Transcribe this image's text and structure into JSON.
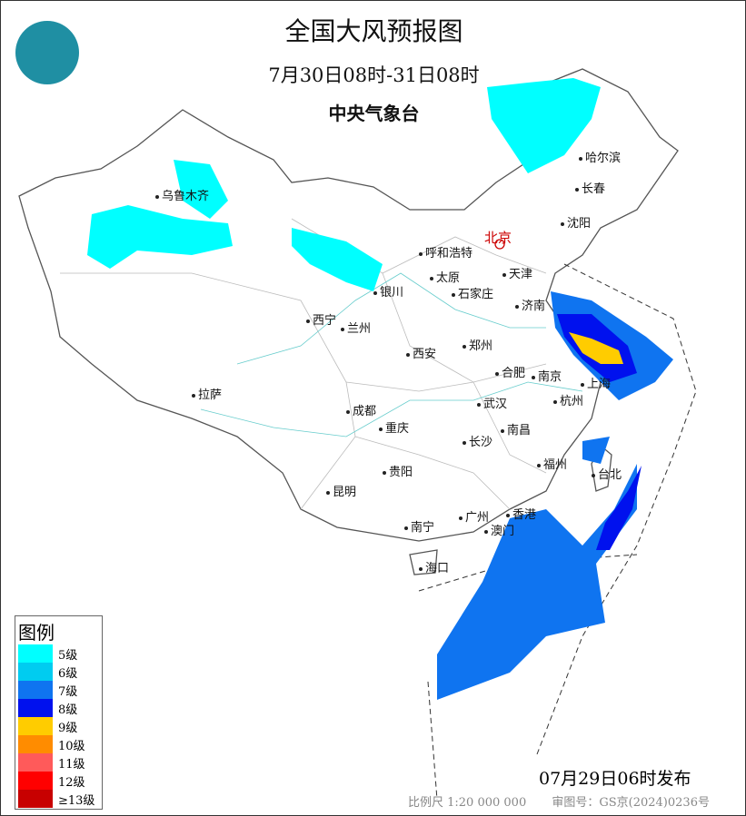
{
  "header": {
    "title": "全国大风预报图",
    "period": "7月30日08时-31日08时",
    "agency": "中央气象台"
  },
  "logo": {
    "icon": "cma-logo"
  },
  "cities": [
    {
      "name": "北京",
      "capital": true
    },
    {
      "name": "乌鲁木齐"
    },
    {
      "name": "哈尔滨"
    },
    {
      "name": "长春"
    },
    {
      "name": "沈阳"
    },
    {
      "name": "呼和浩特"
    },
    {
      "name": "天津"
    },
    {
      "name": "太原"
    },
    {
      "name": "石家庄"
    },
    {
      "name": "银川"
    },
    {
      "name": "济南"
    },
    {
      "name": "西宁"
    },
    {
      "name": "兰州"
    },
    {
      "name": "郑州"
    },
    {
      "name": "西安"
    },
    {
      "name": "合肥"
    },
    {
      "name": "南京"
    },
    {
      "name": "上海"
    },
    {
      "name": "杭州"
    },
    {
      "name": "拉萨"
    },
    {
      "name": "成都"
    },
    {
      "name": "武汉"
    },
    {
      "name": "重庆"
    },
    {
      "name": "南昌"
    },
    {
      "name": "长沙"
    },
    {
      "name": "福州"
    },
    {
      "name": "台北"
    },
    {
      "name": "贵阳"
    },
    {
      "name": "昆明"
    },
    {
      "name": "广州"
    },
    {
      "name": "香港"
    },
    {
      "name": "澳门"
    },
    {
      "name": "南宁"
    },
    {
      "name": "海口"
    }
  ],
  "legend": {
    "title": "图例",
    "items": [
      {
        "label": "5级",
        "color": "#00ffff"
      },
      {
        "label": "6级",
        "color": "#00ccf0"
      },
      {
        "label": "7级",
        "color": "#0f74f0"
      },
      {
        "label": "8级",
        "color": "#0011ee"
      },
      {
        "label": "9级",
        "color": "#ffcc00"
      },
      {
        "label": "10级",
        "color": "#ff8c00"
      },
      {
        "label": "11级",
        "color": "#ff5a5a"
      },
      {
        "label": "12级",
        "color": "#ff0000"
      },
      {
        "label": "≥13级",
        "color": "#c80000"
      }
    ]
  },
  "issued": "07月29日06时发布",
  "footer": {
    "scale": "比例尺 1:20 000 000",
    "approval": "审图号：GS京(2024)0236号"
  }
}
